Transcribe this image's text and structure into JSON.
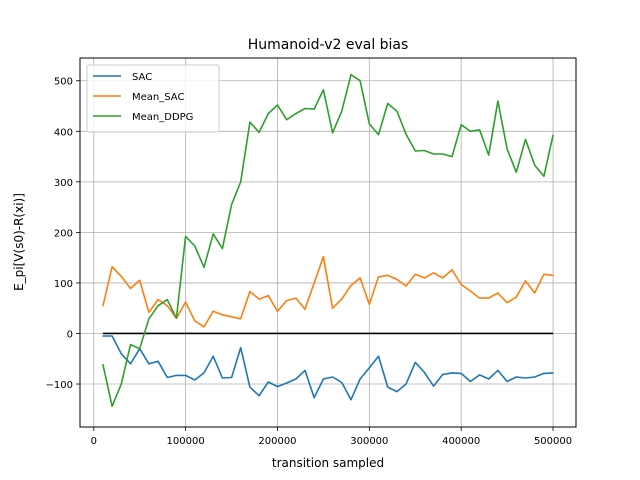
{
  "chart_data": {
    "type": "line",
    "title": "Humanoid-v2 eval bias",
    "xlabel": "transition sampled",
    "ylabel": "E_pi[V(s0)-R(xi)]",
    "xlim": [
      -15000,
      525000
    ],
    "ylim": [
      -185,
      545
    ],
    "xticks": [
      0,
      100000,
      200000,
      300000,
      400000,
      500000
    ],
    "xtick_labels": [
      "0",
      "100000",
      "200000",
      "300000",
      "400000",
      "500000"
    ],
    "yticks": [
      -100,
      0,
      100,
      200,
      300,
      400,
      500
    ],
    "ytick_labels": [
      "−100",
      "0",
      "100",
      "200",
      "300",
      "400",
      "500"
    ],
    "grid": true,
    "legend_position": "top-left",
    "x": [
      10000,
      20000,
      30000,
      40000,
      50000,
      60000,
      70000,
      80000,
      90000,
      100000,
      110000,
      120000,
      130000,
      140000,
      150000,
      160000,
      170000,
      180000,
      190000,
      200000,
      210000,
      220000,
      230000,
      240000,
      250000,
      260000,
      270000,
      280000,
      290000,
      300000,
      310000,
      320000,
      330000,
      340000,
      350000,
      360000,
      370000,
      380000,
      390000,
      400000,
      410000,
      420000,
      430000,
      440000,
      450000,
      460000,
      470000,
      480000,
      490000,
      500000
    ],
    "series": [
      {
        "name": "SAC",
        "color": "#1f77b4",
        "values": [
          -5,
          -5,
          -40,
          -60,
          -30,
          -60,
          -55,
          -87,
          -83,
          -83,
          -92,
          -78,
          -45,
          -88,
          -87,
          -28,
          -106,
          -123,
          -96,
          -105,
          -98,
          -90,
          -73,
          -127,
          -90,
          -86,
          -97,
          -131,
          -90,
          -68,
          -45,
          -106,
          -115,
          -100,
          -57,
          -77,
          -104,
          -81,
          -78,
          -79,
          -95,
          -82,
          -90,
          -73,
          -95,
          -86,
          -88,
          -86,
          -79,
          -78
        ]
      },
      {
        "name": "Mean_SAC",
        "color": "#ff7f0e",
        "values": [
          55,
          132,
          113,
          89,
          105,
          42,
          67,
          55,
          30,
          62,
          25,
          13,
          44,
          37,
          33,
          29,
          83,
          68,
          75,
          44,
          65,
          70,
          48,
          100,
          152,
          50,
          68,
          95,
          110,
          58,
          112,
          115,
          107,
          94,
          117,
          110,
          120,
          110,
          126,
          97,
          84,
          70,
          70,
          80,
          61,
          72,
          104,
          80,
          117,
          115
        ]
      },
      {
        "name": "Mean_DDPG",
        "color": "#2ca02c",
        "values": [
          -62,
          -144,
          -100,
          -22,
          -30,
          29,
          55,
          67,
          30,
          192,
          173,
          131,
          197,
          168,
          255,
          300,
          418,
          398,
          435,
          452,
          423,
          435,
          445,
          444,
          482,
          397,
          440,
          512,
          500,
          415,
          393,
          455,
          440,
          394,
          361,
          362,
          355,
          355,
          350,
          413,
          400,
          403,
          353,
          460,
          365,
          319,
          384,
          333,
          311,
          392
        ]
      }
    ],
    "reference_line": {
      "y": 0,
      "color": "#000000"
    }
  }
}
